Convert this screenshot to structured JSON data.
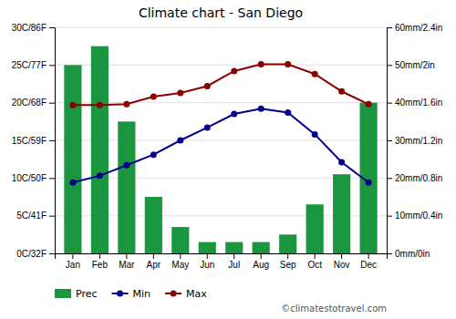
{
  "chart_data": {
    "type": "bar",
    "title": "Climate chart - San Diego",
    "categories": [
      "Jan",
      "Feb",
      "Mar",
      "Apr",
      "May",
      "Jun",
      "Jul",
      "Aug",
      "Sep",
      "Oct",
      "Nov",
      "Dec"
    ],
    "series": [
      {
        "name": "Prec",
        "type": "bar",
        "axis": "y2",
        "color": "#1a9641",
        "values": [
          50,
          55,
          35,
          15,
          7,
          3,
          3,
          3,
          5,
          13,
          21,
          40
        ]
      },
      {
        "name": "Min",
        "type": "line",
        "marker": "circle",
        "color": "#00008B",
        "values": [
          9.4,
          10.3,
          11.7,
          13.1,
          15.0,
          16.7,
          18.5,
          19.2,
          18.7,
          15.8,
          12.1,
          9.4
        ]
      },
      {
        "name": "Max",
        "type": "line",
        "marker": "circle",
        "color": "#8B0000",
        "values": [
          19.7,
          19.7,
          19.8,
          20.8,
          21.3,
          22.2,
          24.2,
          25.1,
          25.1,
          23.8,
          21.5,
          19.8
        ]
      }
    ],
    "ylim": [
      0,
      30
    ],
    "yticks": [
      {
        "value": 0,
        "label": "0C/32F"
      },
      {
        "value": 5,
        "label": "5C/41F"
      },
      {
        "value": 10,
        "label": "10C/50F"
      },
      {
        "value": 15,
        "label": "15C/59F"
      },
      {
        "value": 20,
        "label": "20C/68F"
      },
      {
        "value": 25,
        "label": "25C/77F"
      },
      {
        "value": 30,
        "label": "30C/86F"
      }
    ],
    "y2lim": [
      0,
      60
    ],
    "y2ticks": [
      {
        "value": 0,
        "label": "0mm/0in"
      },
      {
        "value": 10,
        "label": "10mm/0.4in"
      },
      {
        "value": 20,
        "label": "20mm/0.8in"
      },
      {
        "value": 30,
        "label": "30mm/1.2in"
      },
      {
        "value": 40,
        "label": "40mm/1.6in"
      },
      {
        "value": 50,
        "label": "50mm/2in"
      },
      {
        "value": 60,
        "label": "60mm/2.4in"
      }
    ],
    "grid": true,
    "legend": "bottom",
    "annotations": [
      "©climatestotravel.com"
    ]
  }
}
